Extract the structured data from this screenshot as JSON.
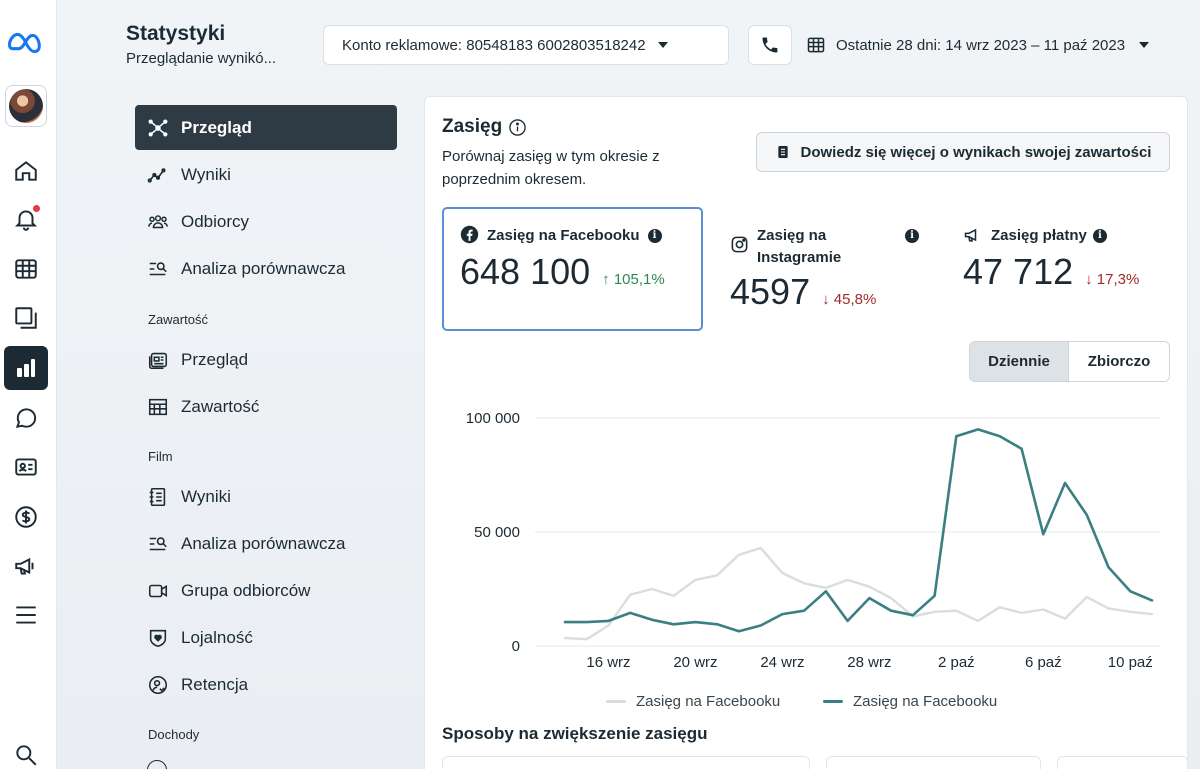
{
  "header": {
    "title": "Statystyki",
    "subtitle": "Przeglądanie wynikó...",
    "ad_account": "Konto reklamowe: 80548183 6002803518242",
    "date_range": "Ostatnie 28 dni: 14 wrz 2023 – 11 paź 2023"
  },
  "rail": {
    "icons": [
      "meta-logo-icon",
      "avatar",
      "home-icon",
      "bell-icon",
      "calendar-grid-icon",
      "pages-icon",
      "insights-bar-chart-icon",
      "chat-bubble-icon",
      "id-card-icon",
      "dollar-icon",
      "megaphone-icon",
      "menu-icon",
      "search-icon"
    ],
    "active": "insights-bar-chart-icon"
  },
  "subnav": {
    "items_top": [
      {
        "label": "Przegląd",
        "icon": "overview-icon",
        "active": true
      },
      {
        "label": "Wyniki",
        "icon": "trend-icon"
      },
      {
        "label": "Odbiorcy",
        "icon": "people-icon"
      },
      {
        "label": "Analiza porównawcza",
        "icon": "compare-icon"
      }
    ],
    "section_content": "Zawartość",
    "items_content": [
      {
        "label": "Przegląd",
        "icon": "content-overview-icon"
      },
      {
        "label": "Zawartość",
        "icon": "table-icon"
      }
    ],
    "section_film": "Film",
    "items_film": [
      {
        "label": "Wyniki",
        "icon": "notebook-icon"
      },
      {
        "label": "Analiza porównawcza",
        "icon": "compare-icon"
      },
      {
        "label": "Grupa odbiorców",
        "icon": "video-icon"
      },
      {
        "label": "Lojalność",
        "icon": "shield-heart-icon"
      },
      {
        "label": "Retencja",
        "icon": "user-check-icon"
      }
    ],
    "section_income": "Dochody"
  },
  "card": {
    "title": "Zasięg",
    "description": "Porównaj zasięg w tym okresie z poprzednim okresem.",
    "learn_more": "Dowiedz się więcej o wynikach swojej zawartości",
    "metrics": [
      {
        "label": "Zasięg na Facebooku",
        "value": "648 100",
        "change": "105,1%",
        "direction": "up",
        "icon": "facebook-icon"
      },
      {
        "label_line1": "Zasięg na",
        "label_line2": "Instagramie",
        "value": "4597",
        "change": "45,8%",
        "direction": "down",
        "icon": "instagram-icon"
      },
      {
        "label": "Zasięg płatny",
        "value": "47 712",
        "change": "17,3%",
        "direction": "down",
        "icon": "megaphone-icon"
      }
    ],
    "toggle": {
      "daily": "Dziennie",
      "cumulative": "Zbiorczo",
      "selected": "Dziennie"
    },
    "section_heading": "Sposoby na zwiększenie zasięgu"
  },
  "colors": {
    "accent": "#2e3a44",
    "current_series": "#3a7f82",
    "previous_series": "#dadde0",
    "up": "#2c8a55",
    "down": "#a32a2a"
  },
  "chart_data": {
    "type": "line",
    "ylim": [
      0,
      100000
    ],
    "yticks": [
      {
        "value": 0,
        "label": "0"
      },
      {
        "value": 50000,
        "label": "50 000"
      },
      {
        "value": 100000,
        "label": "100 000"
      }
    ],
    "x": [
      "14 wrz",
      "15 wrz",
      "16 wrz",
      "17 wrz",
      "18 wrz",
      "19 wrz",
      "20 wrz",
      "21 wrz",
      "22 wrz",
      "23 wrz",
      "24 wrz",
      "25 wrz",
      "26 wrz",
      "27 wrz",
      "28 wrz",
      "29 wrz",
      "30 wrz",
      "1 paź",
      "2 paź",
      "3 paź",
      "4 paź",
      "5 paź",
      "6 paź",
      "7 paź",
      "8 paź",
      "9 paź",
      "10 paź",
      "11 paź"
    ],
    "xtick_labels": [
      "16 wrz",
      "20 wrz",
      "24 wrz",
      "28 wrz",
      "2 paź",
      "6 paź",
      "10 paź"
    ],
    "grid": true,
    "legend_position": "bottom",
    "series": [
      {
        "name": "Zasięg na Facebooku",
        "role": "previous",
        "values": [
          3500,
          3000,
          9000,
          22500,
          25000,
          22000,
          29000,
          31000,
          40000,
          43000,
          32000,
          27500,
          25500,
          29000,
          26000,
          21000,
          13000,
          15000,
          15500,
          11000,
          17000,
          14500,
          16000,
          12000,
          21500,
          16500,
          15000,
          14000
        ]
      },
      {
        "name": "Zasięg na Facebooku",
        "role": "current",
        "values": [
          10500,
          10500,
          11000,
          14500,
          11500,
          9500,
          10500,
          9500,
          6500,
          9000,
          14000,
          15500,
          24000,
          11000,
          21000,
          15500,
          13500,
          22000,
          92000,
          95000,
          92000,
          86500,
          49000,
          71500,
          57500,
          34500,
          24000,
          20000
        ]
      }
    ]
  }
}
